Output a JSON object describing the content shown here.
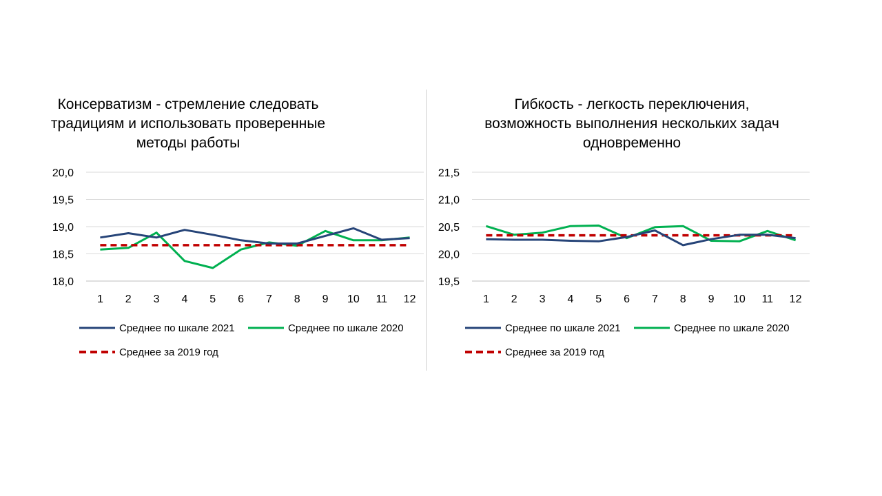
{
  "chart_data": [
    {
      "type": "line",
      "title_lines": [
        "Консерватизм - стремление следовать",
        "традициям и использовать проверенные",
        "методы работы"
      ],
      "categories": [
        "1",
        "2",
        "3",
        "4",
        "5",
        "6",
        "7",
        "8",
        "9",
        "10",
        "11",
        "12"
      ],
      "ylim": [
        18.0,
        20.0
      ],
      "yticks": [
        "18,0",
        "18,5",
        "19,0",
        "19,5",
        "20,0"
      ],
      "ytick_values": [
        18.0,
        18.5,
        19.0,
        19.5,
        20.0
      ],
      "grid": true,
      "series": [
        {
          "name": "Среднее по шкале 2021",
          "color": "#264478",
          "style": "solid",
          "values": [
            18.8,
            18.88,
            18.8,
            18.94,
            18.85,
            18.75,
            18.69,
            18.69,
            18.83,
            18.97,
            18.76,
            18.79
          ]
        },
        {
          "name": "Среднее по шкале 2020",
          "color": "#00B050",
          "style": "solid",
          "values": [
            18.58,
            18.61,
            18.89,
            18.37,
            18.24,
            18.58,
            18.71,
            18.65,
            18.92,
            18.75,
            18.75,
            18.8
          ]
        },
        {
          "name": "Среднее за 2019 год",
          "color": "#C00000",
          "style": "dashed",
          "values": [
            18.66,
            18.66,
            18.66,
            18.66,
            18.66,
            18.66,
            18.66,
            18.66,
            18.66,
            18.66,
            18.66,
            18.66
          ]
        }
      ]
    },
    {
      "type": "line",
      "title_lines": [
        "Гибкость - легкость переключения,",
        "возможность выполнения нескольких задач",
        "одновременно"
      ],
      "categories": [
        "1",
        "2",
        "3",
        "4",
        "5",
        "6",
        "7",
        "8",
        "9",
        "10",
        "11",
        "12"
      ],
      "ylim": [
        19.5,
        21.5
      ],
      "yticks": [
        "19,5",
        "20,0",
        "20,5",
        "21,0",
        "21,5"
      ],
      "ytick_values": [
        19.5,
        20.0,
        20.5,
        21.0,
        21.5
      ],
      "grid": true,
      "series": [
        {
          "name": "Среднее по шкале 2021",
          "color": "#264478",
          "style": "solid",
          "values": [
            20.27,
            20.26,
            20.26,
            20.24,
            20.23,
            20.31,
            20.43,
            20.16,
            20.27,
            20.35,
            20.35,
            20.29
          ]
        },
        {
          "name": "Среднее по шкале 2020",
          "color": "#00B050",
          "style": "solid",
          "values": [
            20.51,
            20.35,
            20.39,
            20.51,
            20.52,
            20.29,
            20.49,
            20.51,
            20.24,
            20.23,
            20.42,
            20.25
          ]
        },
        {
          "name": "Среднее за 2019 год",
          "color": "#C00000",
          "style": "dashed",
          "values": [
            20.34,
            20.34,
            20.34,
            20.34,
            20.34,
            20.34,
            20.34,
            20.34,
            20.34,
            20.34,
            20.34,
            20.34
          ]
        }
      ]
    }
  ]
}
